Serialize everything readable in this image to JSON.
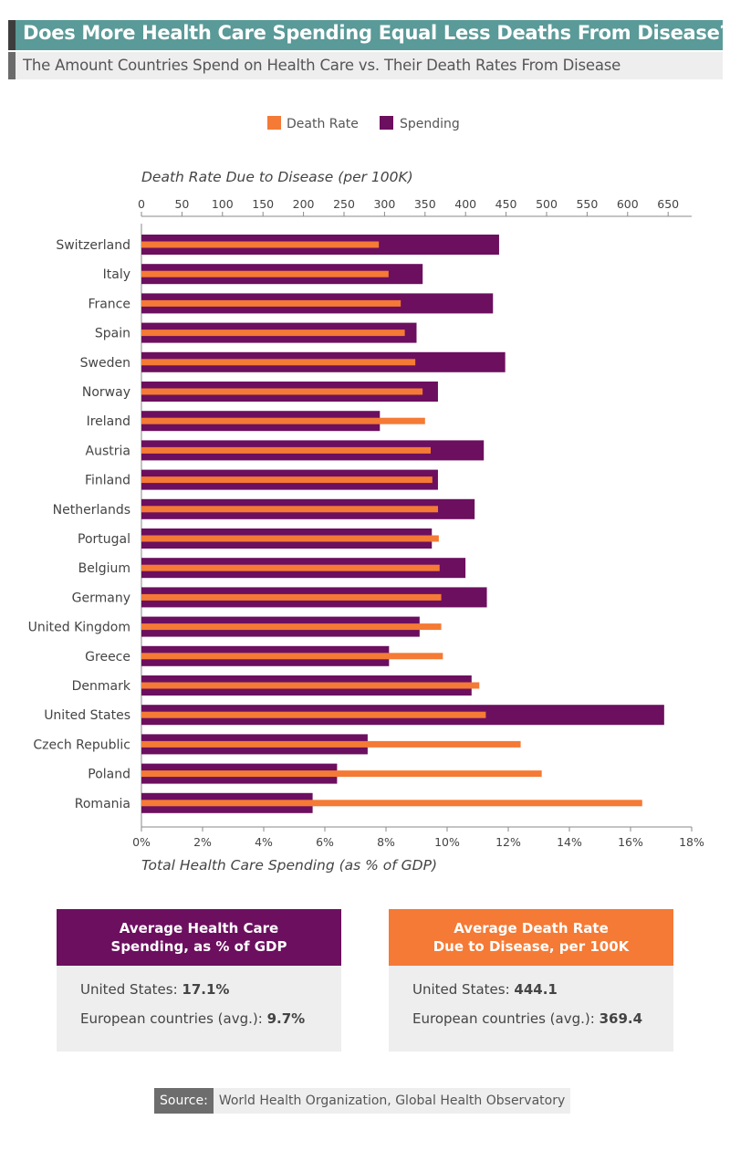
{
  "header": {
    "title": "Does More Health Care Spending Equal Less Deaths From Disease?",
    "subtitle": "The Amount Countries Spend on Health Care vs. Their Death Rates From Disease"
  },
  "colors": {
    "spending": "#6c0f5f",
    "death_rate": "#f47a35",
    "title_bg": "#5a9a98"
  },
  "chart_data": {
    "type": "bar",
    "orientation": "horizontal",
    "categories": [
      "Switzerland",
      "Italy",
      "France",
      "Spain",
      "Sweden",
      "Norway",
      "Ireland",
      "Austria",
      "Finland",
      "Netherlands",
      "Portugal",
      "Belgium",
      "Germany",
      "United Kingdom",
      "Greece",
      "Denmark",
      "United States",
      "Czech Republic",
      "Poland",
      "Romania"
    ],
    "series": [
      {
        "name": "Spending",
        "axis": "bottom",
        "unit": "% of GDP",
        "values": [
          11.7,
          9.2,
          11.5,
          9.0,
          11.9,
          9.7,
          7.8,
          11.2,
          9.7,
          10.9,
          9.5,
          10.6,
          11.3,
          9.1,
          8.1,
          10.8,
          17.1,
          7.4,
          6.4,
          5.6
        ]
      },
      {
        "name": "Death Rate",
        "axis": "top",
        "unit": "per 100K",
        "values": [
          293,
          305,
          320,
          325,
          338,
          347,
          350,
          357,
          359,
          366,
          367,
          368,
          370,
          370,
          372,
          417,
          425,
          468,
          494,
          618
        ]
      }
    ],
    "legend": [
      "Death Rate",
      "Spending"
    ],
    "top_axis": {
      "label": "Death Rate Due to Disease (per 100K)",
      "range": [
        0,
        650
      ],
      "ticks": [
        "0",
        "50",
        "100",
        "150",
        "200",
        "250",
        "300",
        "350",
        "400",
        "450",
        "500",
        "550",
        "600",
        "650"
      ]
    },
    "bottom_axis": {
      "label": "Total Health Care Spending (as % of GDP)",
      "range": [
        0,
        18
      ],
      "ticks": [
        "0%",
        "2%",
        "4%",
        "6%",
        "8%",
        "10%",
        "12%",
        "14%",
        "16%",
        "18%"
      ]
    }
  },
  "summary": {
    "spending": {
      "heading_line1": "Average Health Care",
      "heading_line2": "Spending, as % of GDP",
      "us_label": "United States: ",
      "us_value": "17.1%",
      "eu_label": "European countries (avg.): ",
      "eu_value": "9.7%"
    },
    "death": {
      "heading_line1": "Average Death Rate",
      "heading_line2": "Due to Disease, per 100K",
      "us_label": "United States: ",
      "us_value": "444.1",
      "eu_label": "European countries (avg.): ",
      "eu_value": "369.4"
    }
  },
  "source": {
    "label": "Source:",
    "text": "World Health Organization, Global Health Observatory"
  }
}
